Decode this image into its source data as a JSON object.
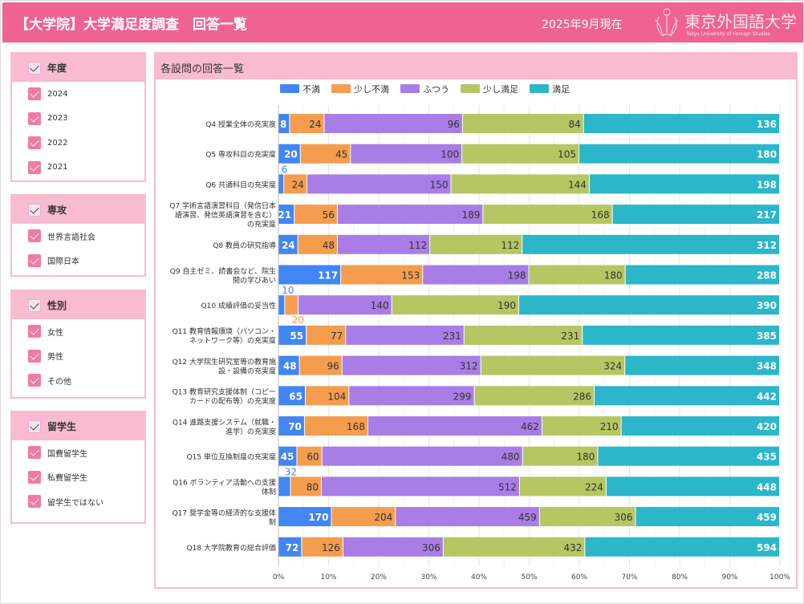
{
  "header": {
    "title": "【大学院】大学満足度調査　回答一覧",
    "as_of": "2025年9月現在",
    "logo_jp": "東京外国語大学",
    "logo_en": "Tokyo University of Foreign Studies"
  },
  "filters": [
    {
      "label": "年度",
      "items": [
        "2024",
        "2023",
        "2022",
        "2021"
      ]
    },
    {
      "label": "専攻",
      "items": [
        "世界言語社会",
        "国際日本"
      ]
    },
    {
      "label": "性別",
      "items": [
        "女性",
        "男性",
        "その他"
      ]
    },
    {
      "label": "留学生",
      "items": [
        "国費留学生",
        "私費留学生",
        "留学生ではない"
      ]
    }
  ],
  "chart_panel": {
    "title": "各設問の回答一覧"
  },
  "chart_data": {
    "type": "bar",
    "orientation": "horizontal",
    "stacked": "percent",
    "series_names": [
      "不満",
      "少し不満",
      "ふつう",
      "少し満足",
      "満足"
    ],
    "colors": [
      "#4285f4",
      "#f59d4f",
      "#a97de6",
      "#b6c663",
      "#2bb6c9"
    ],
    "categories": [
      "Q4 授業全体の充実度",
      "Q5 専攻科目の充実度",
      "Q6 共通科目の充実度",
      "Q7 学術言語演習科目（発信日本語演習、発信英語演習を含む）の充実度",
      "Q8 教員の研究指導",
      "Q9 自主ゼミ、読書会など、院生間の学びあい",
      "Q10 成績評価の妥当性",
      "Q11 教育情報環境（パソコン・ネットワーク等）の充実度",
      "Q12 大学院生研究室等の教育施設・設備の充実度",
      "Q13 教育研究支援体制（コピーカードの配布等）の充実度",
      "Q14 進路支援システム（就職・進学）の充実度",
      "Q15 単位互換制度の充実度",
      "Q16 ボランティア活動への支援体制",
      "Q17 奨学金等の経済的な支援体制",
      "Q18 大学院教育の総合評価"
    ],
    "category_lines": [
      [
        "Q4 授業全体の充実度"
      ],
      [
        "Q5 専攻科目の充実度"
      ],
      [
        "Q6 共通科目の充実度"
      ],
      [
        "Q7 学術言語演習科目（発信日本",
        "語演習、発信英語演習を含む）",
        "の充実度"
      ],
      [
        "Q8 教員の研究指導"
      ],
      [
        "Q9 自主ゼミ、読書会など、院生",
        "間の学びあい"
      ],
      [
        "Q10 成績評価の妥当性"
      ],
      [
        "Q11 教育情報環境（パソコン・",
        "ネットワーク等）の充実度"
      ],
      [
        "Q12 大学院生研究室等の教育施",
        "設・設備の充実度"
      ],
      [
        "Q13 教育研究支援体制（コピー",
        "カードの配布等）の充実度"
      ],
      [
        "Q14 進路支援システム（就職・",
        "進学）の充実度"
      ],
      [
        "Q15 単位互換制度の充実度"
      ],
      [
        "Q16 ボランティア活動への支援",
        "体制"
      ],
      [
        "Q17 奨学金等の経済的な支援体",
        "制"
      ],
      [
        "Q18 大学院教育の総合評価"
      ]
    ],
    "values": [
      [
        8,
        24,
        96,
        84,
        136
      ],
      [
        20,
        45,
        100,
        105,
        180
      ],
      [
        6,
        24,
        150,
        144,
        198
      ],
      [
        21,
        56,
        189,
        168,
        217
      ],
      [
        24,
        48,
        112,
        112,
        312
      ],
      [
        117,
        153,
        198,
        180,
        288
      ],
      [
        10,
        20,
        140,
        190,
        390
      ],
      [
        55,
        77,
        231,
        231,
        385
      ],
      [
        48,
        96,
        312,
        324,
        348
      ],
      [
        65,
        104,
        299,
        286,
        442
      ],
      [
        70,
        168,
        462,
        210,
        420
      ],
      [
        45,
        60,
        480,
        180,
        435
      ],
      [
        32,
        80,
        512,
        224,
        448
      ],
      [
        170,
        204,
        459,
        306,
        459
      ],
      [
        72,
        126,
        306,
        432,
        594
      ]
    ],
    "x_ticks": [
      "0%",
      "10%",
      "20%",
      "30%",
      "40%",
      "50%",
      "60%",
      "70%",
      "80%",
      "90%",
      "100%"
    ],
    "xlim": [
      0,
      100
    ],
    "grid": true,
    "legend": "top"
  }
}
